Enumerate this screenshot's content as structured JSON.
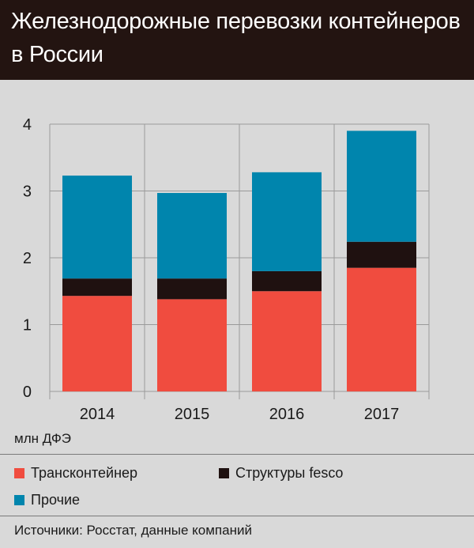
{
  "header": {
    "title": "Железнодорожные перевозки контейнеров в России",
    "background_color": "#231411"
  },
  "chart_data": {
    "type": "bar",
    "stacked": true,
    "categories": [
      "2014",
      "2015",
      "2016",
      "2017"
    ],
    "series": [
      {
        "name": "Трансконтейнер",
        "color": "#f04c3f",
        "values": [
          1.43,
          1.38,
          1.5,
          1.85
        ]
      },
      {
        "name": "Структуры fesco",
        "color": "#1f1110",
        "values": [
          0.26,
          0.31,
          0.3,
          0.39
        ]
      },
      {
        "name": "Прочие",
        "color": "#0085ad",
        "values": [
          1.54,
          1.28,
          1.48,
          1.66
        ]
      }
    ],
    "ylim": [
      0,
      4
    ],
    "yticks": [
      0,
      1,
      2,
      3,
      4
    ],
    "ylabel": "млн ДФЭ",
    "xlabel": "",
    "grid": true,
    "legend_position": "bottom"
  },
  "footer": {
    "unit_label": "млн ДФЭ",
    "source": "Источники: Росстат, данные компаний"
  }
}
